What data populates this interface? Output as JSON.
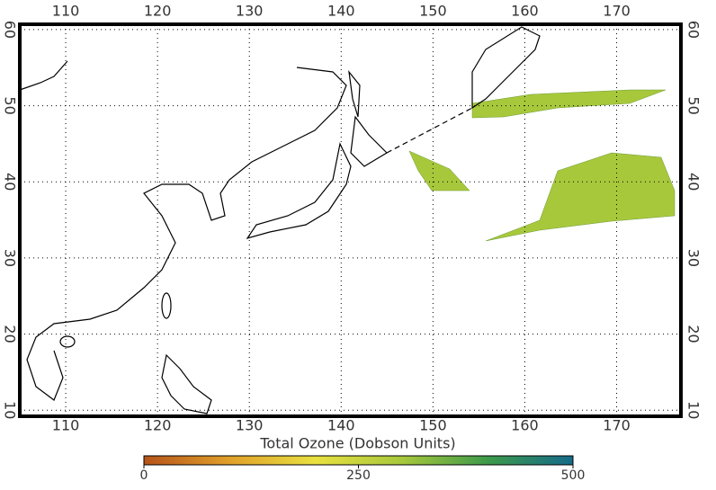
{
  "map": {
    "xlim": [
      105,
      177
    ],
    "ylim": [
      9.2,
      60.7
    ],
    "xticks": [
      110,
      120,
      130,
      140,
      150,
      160,
      170
    ],
    "yticks": [
      10,
      20,
      30,
      40,
      50,
      60
    ],
    "grid": true
  },
  "colorbar": {
    "label": "Total Ozone (Dobson Units)",
    "lim": [
      0,
      500
    ],
    "ticks": [
      0,
      250,
      500
    ],
    "colors": [
      "#b5531a",
      "#e0a02a",
      "#e8e040",
      "#a8c83c",
      "#3e9a4a",
      "#156a8a"
    ]
  }
}
